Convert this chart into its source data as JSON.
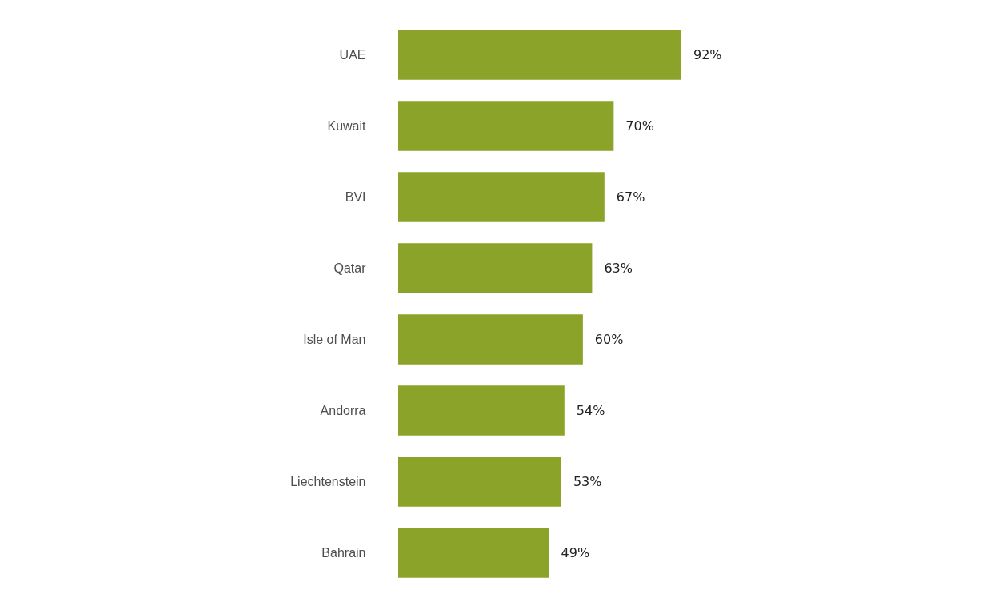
{
  "chart_data": {
    "type": "bar",
    "orientation": "horizontal",
    "categories": [
      "UAE",
      "Kuwait",
      "BVI",
      "Qatar",
      "Isle of Man",
      "Andorra",
      "Liechtenstein",
      "Bahrain"
    ],
    "values": [
      92,
      70,
      67,
      63,
      60,
      54,
      53,
      49
    ],
    "value_labels": [
      "92%",
      "70%",
      "67%",
      "63%",
      "60%",
      "54%",
      "53%",
      "49%"
    ],
    "color": "#8aa328"
  }
}
